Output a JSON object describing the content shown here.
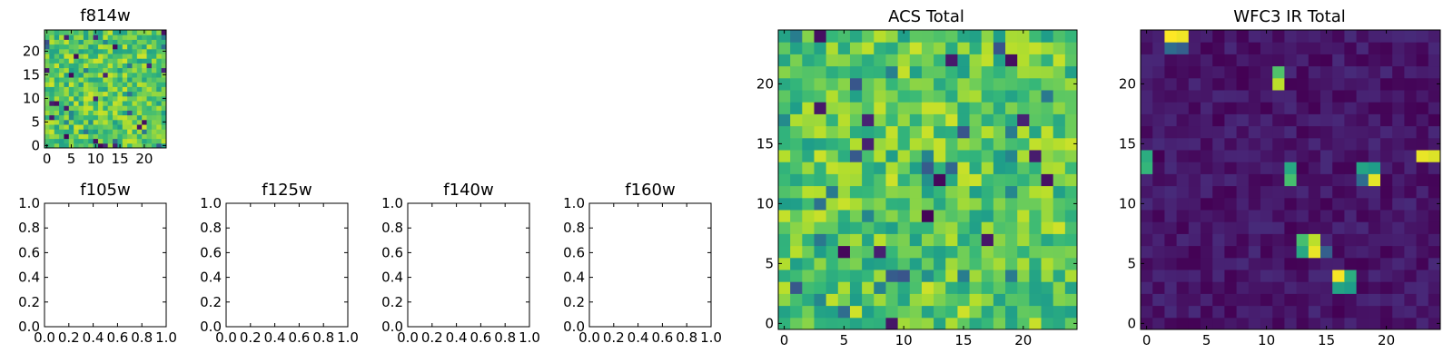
{
  "chart_data": [
    {
      "id": "f814w",
      "type": "heatmap",
      "title": "f814w",
      "colormap": "viridis",
      "xlim": [
        -0.5,
        24.5
      ],
      "ylim": [
        -0.5,
        24.5
      ],
      "xticks": [
        0,
        5,
        10,
        15,
        20
      ],
      "xtick_labels": [
        "0",
        "5",
        "10",
        "15",
        "20"
      ],
      "yticks": [
        0,
        5,
        10,
        15,
        20
      ],
      "ytick_labels": [
        "0",
        "5",
        "10",
        "15",
        "20"
      ],
      "grid": false,
      "seed": 11,
      "value_range": [
        0.55,
        0.93
      ],
      "outlier_fraction": 0.06
    },
    {
      "id": "f105w",
      "type": "heatmap",
      "title": "f105w",
      "empty": true,
      "xlim": [
        0,
        1
      ],
      "ylim": [
        0,
        1
      ],
      "xticks": [
        0,
        0.2,
        0.4,
        0.6,
        0.8,
        1.0
      ],
      "xtick_labels": [
        "0.0",
        "0.2",
        "0.4",
        "0.6",
        "0.8",
        "1.0"
      ],
      "yticks": [
        0,
        0.2,
        0.4,
        0.6,
        0.8,
        1.0
      ],
      "ytick_labels": [
        "0.0",
        "0.2",
        "0.4",
        "0.6",
        "0.8",
        "1.0"
      ],
      "grid": false
    },
    {
      "id": "f125w",
      "type": "heatmap",
      "title": "f125w",
      "empty": true,
      "xlim": [
        0,
        1
      ],
      "ylim": [
        0,
        1
      ],
      "xticks": [
        0,
        0.2,
        0.4,
        0.6,
        0.8,
        1.0
      ],
      "xtick_labels": [
        "0.0",
        "0.2",
        "0.4",
        "0.6",
        "0.8",
        "1.0"
      ],
      "yticks": [
        0,
        0.2,
        0.4,
        0.6,
        0.8,
        1.0
      ],
      "ytick_labels": [
        "0.0",
        "0.2",
        "0.4",
        "0.6",
        "0.8",
        "1.0"
      ],
      "grid": false
    },
    {
      "id": "f140w",
      "type": "heatmap",
      "title": "f140w",
      "empty": true,
      "xlim": [
        0,
        1
      ],
      "ylim": [
        0,
        1
      ],
      "xticks": [
        0,
        0.2,
        0.4,
        0.6,
        0.8,
        1.0
      ],
      "xtick_labels": [
        "0.0",
        "0.2",
        "0.4",
        "0.6",
        "0.8",
        "1.0"
      ],
      "yticks": [
        0,
        0.2,
        0.4,
        0.6,
        0.8,
        1.0
      ],
      "ytick_labels": [
        "0.0",
        "0.2",
        "0.4",
        "0.6",
        "0.8",
        "1.0"
      ],
      "grid": false
    },
    {
      "id": "f160w",
      "type": "heatmap",
      "title": "f160w",
      "empty": true,
      "xlim": [
        0,
        1
      ],
      "ylim": [
        0,
        1
      ],
      "xticks": [
        0,
        0.2,
        0.4,
        0.6,
        0.8,
        1.0
      ],
      "xtick_labels": [
        "0.0",
        "0.2",
        "0.4",
        "0.6",
        "0.8",
        "1.0"
      ],
      "yticks": [
        0,
        0.2,
        0.4,
        0.6,
        0.8,
        1.0
      ],
      "ytick_labels": [
        "0.0",
        "0.2",
        "0.4",
        "0.6",
        "0.8",
        "1.0"
      ],
      "grid": false
    },
    {
      "id": "acs-total",
      "type": "heatmap",
      "title": "ACS Total",
      "colormap": "viridis",
      "xlim": [
        -0.5,
        24.5
      ],
      "ylim": [
        -0.5,
        24.5
      ],
      "xticks": [
        0,
        5,
        10,
        15,
        20
      ],
      "xtick_labels": [
        "0",
        "5",
        "10",
        "15",
        "20"
      ],
      "yticks": [
        0,
        5,
        10,
        15,
        20
      ],
      "ytick_labels": [
        "0",
        "5",
        "10",
        "15",
        "20"
      ],
      "grid": false,
      "seed": 23,
      "value_range": [
        0.55,
        0.93
      ],
      "outlier_fraction": 0.05
    },
    {
      "id": "wfc3-ir-total",
      "type": "heatmap",
      "title": "WFC3 IR Total",
      "colormap": "viridis",
      "xlim": [
        -0.5,
        24.5
      ],
      "ylim": [
        -0.5,
        24.5
      ],
      "xticks": [
        0,
        5,
        10,
        15,
        20
      ],
      "xtick_labels": [
        "0",
        "5",
        "10",
        "15",
        "20"
      ],
      "yticks": [
        0,
        5,
        10,
        15,
        20
      ],
      "ytick_labels": [
        "0",
        "5",
        "10",
        "15",
        "20"
      ],
      "grid": false,
      "seed": 37,
      "value_range": [
        0.0,
        0.12
      ],
      "hot_pixels": [
        {
          "x": 2,
          "y": 24,
          "v": 1.0
        },
        {
          "x": 3,
          "y": 24,
          "v": 0.98
        },
        {
          "x": 2,
          "y": 23,
          "v": 0.35
        },
        {
          "x": 3,
          "y": 23,
          "v": 0.3
        },
        {
          "x": 11,
          "y": 21,
          "v": 0.72
        },
        {
          "x": 11,
          "y": 20,
          "v": 0.9
        },
        {
          "x": 0,
          "y": 14,
          "v": 0.62
        },
        {
          "x": 0,
          "y": 13,
          "v": 0.66
        },
        {
          "x": 23,
          "y": 14,
          "v": 0.97
        },
        {
          "x": 24,
          "y": 14,
          "v": 0.95
        },
        {
          "x": 12,
          "y": 13,
          "v": 0.6
        },
        {
          "x": 12,
          "y": 12,
          "v": 0.7
        },
        {
          "x": 18,
          "y": 13,
          "v": 0.58
        },
        {
          "x": 19,
          "y": 13,
          "v": 0.55
        },
        {
          "x": 19,
          "y": 12,
          "v": 0.96
        },
        {
          "x": 18,
          "y": 12,
          "v": 0.35
        },
        {
          "x": 13,
          "y": 7,
          "v": 0.7
        },
        {
          "x": 14,
          "y": 7,
          "v": 0.9
        },
        {
          "x": 13,
          "y": 6,
          "v": 0.6
        },
        {
          "x": 14,
          "y": 6,
          "v": 0.97
        },
        {
          "x": 15,
          "y": 6,
          "v": 0.3
        },
        {
          "x": 16,
          "y": 4,
          "v": 0.99
        },
        {
          "x": 17,
          "y": 4,
          "v": 0.62
        },
        {
          "x": 16,
          "y": 3,
          "v": 0.58
        },
        {
          "x": 17,
          "y": 3,
          "v": 0.55
        }
      ]
    }
  ]
}
